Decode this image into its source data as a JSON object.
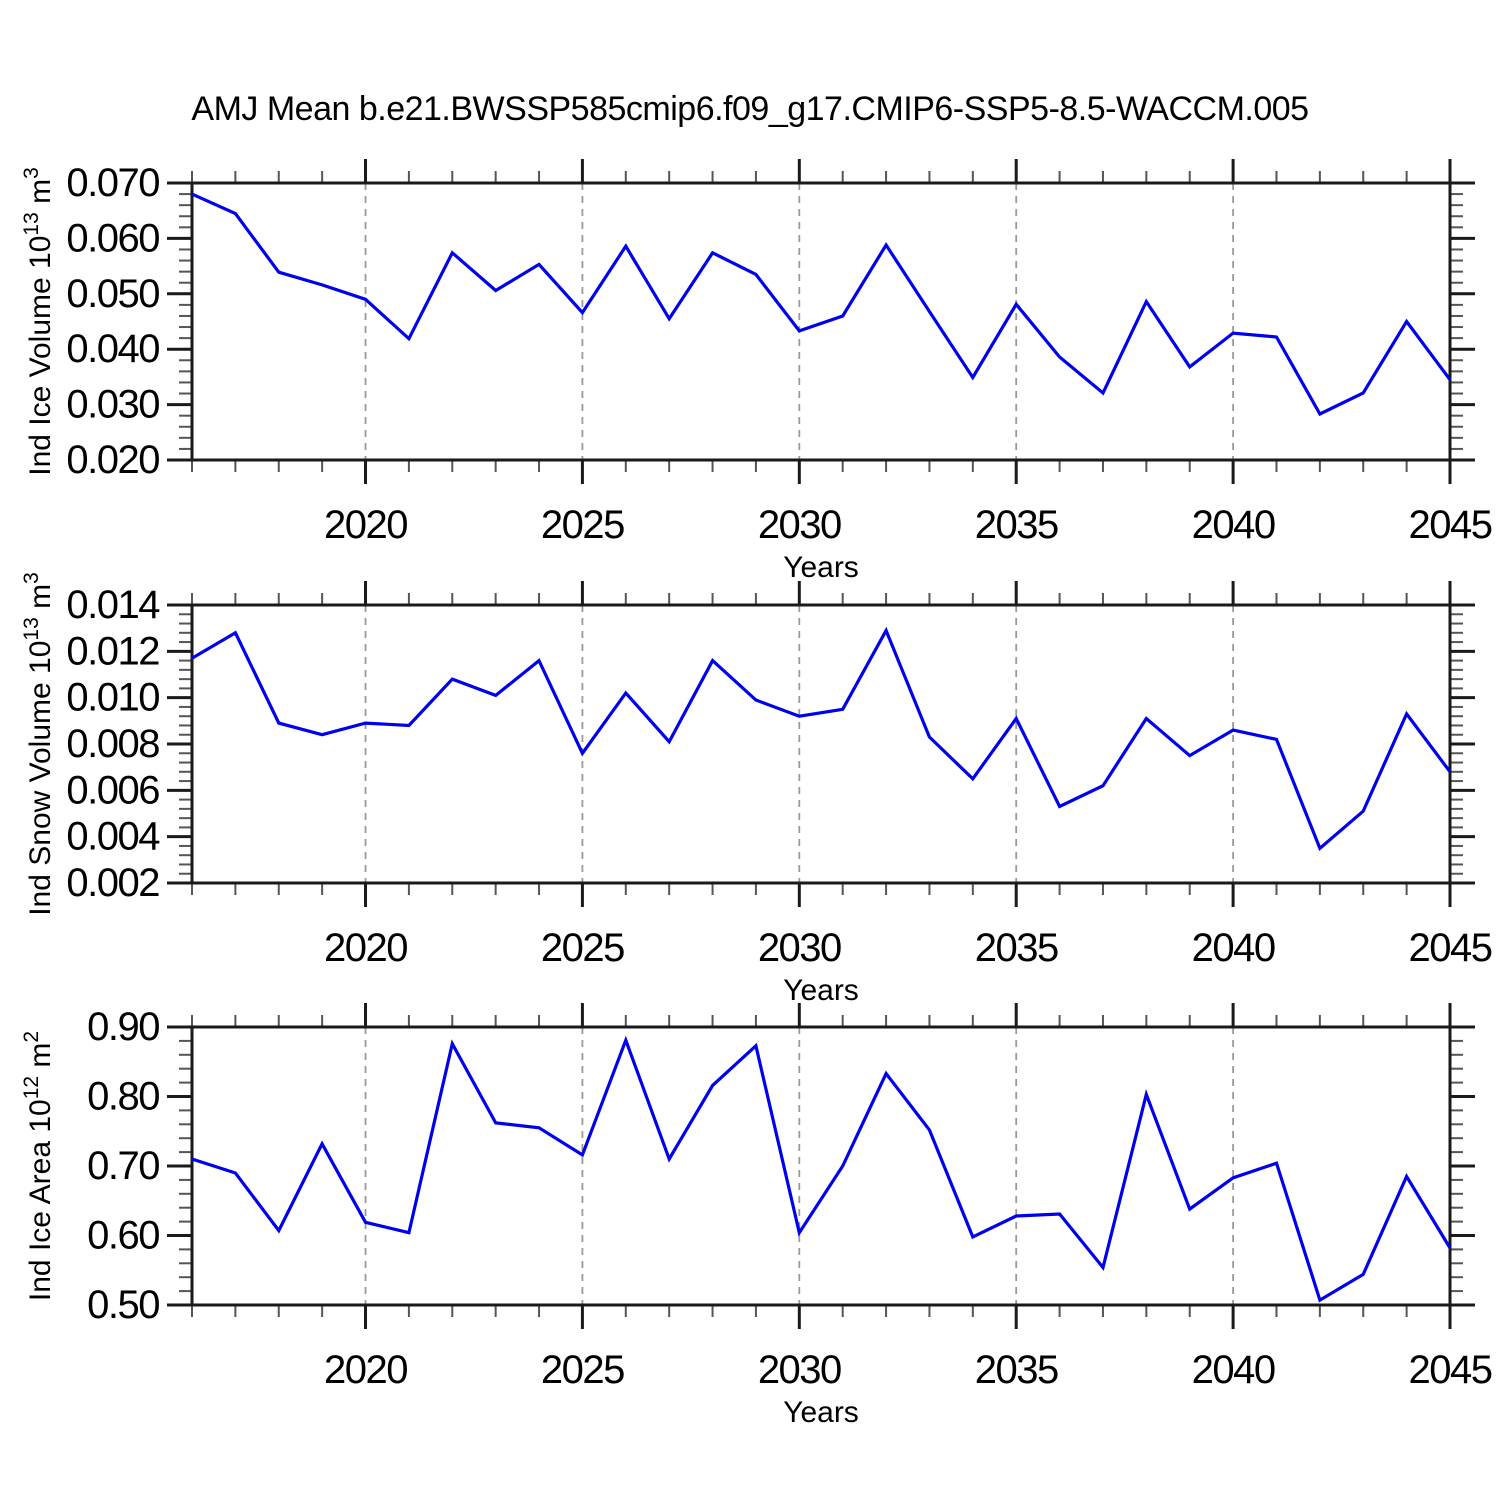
{
  "header": {
    "title": "AMJ Mean b.e21.BWSSP585cmip6.f09_g17.CMIP6-SSP5-8.5-WACCM.005"
  },
  "colors": {
    "line": "#0000ee",
    "grid": "#999999",
    "axis": "#1a1a1a",
    "minor_tick": "#555555",
    "background": "#ffffff",
    "text": "#000000"
  },
  "chart_data": [
    {
      "name": "ice-volume-panel",
      "type": "line",
      "ylabel": "Ind Ice Volume 10^13 m^3",
      "xlabel": "Years",
      "x": [
        2016,
        2017,
        2018,
        2019,
        2020,
        2021,
        2022,
        2023,
        2024,
        2025,
        2026,
        2027,
        2028,
        2029,
        2030,
        2031,
        2032,
        2033,
        2034,
        2035,
        2036,
        2037,
        2038,
        2039,
        2040,
        2041,
        2042,
        2043,
        2044,
        2045
      ],
      "y": [
        0.068,
        0.0645,
        0.0539,
        0.0516,
        0.049,
        0.0419,
        0.0574,
        0.0506,
        0.0553,
        0.0466,
        0.0586,
        0.0455,
        0.0574,
        0.0535,
        0.0433,
        0.046,
        0.0588,
        0.0468,
        0.0349,
        0.0481,
        0.0386,
        0.0321,
        0.0486,
        0.0368,
        0.0429,
        0.0422,
        0.0283,
        0.0321,
        0.045,
        0.0345
      ],
      "xlim": [
        2016,
        2045
      ],
      "ylim": [
        0.02,
        0.07
      ],
      "xticks": [
        2020,
        2025,
        2030,
        2035,
        2040,
        2045
      ],
      "xtick_labels": [
        "2020",
        "2025",
        "2030",
        "2035",
        "2040",
        "2045"
      ],
      "yticks": [
        0.02,
        0.03,
        0.04,
        0.05,
        0.06,
        0.07
      ],
      "ytick_labels": [
        "0.020",
        "0.030",
        "0.040",
        "0.050",
        "0.060",
        "0.070"
      ],
      "x_minor_step": 1,
      "y_minors_per_interval": 4,
      "grid": "vertical-dashed-at-interior-major-xticks",
      "legend": "none"
    },
    {
      "name": "snow-volume-panel",
      "type": "line",
      "ylabel": "Ind Snow Volume 10^13 m^3",
      "xlabel": "Years",
      "x": [
        2016,
        2017,
        2018,
        2019,
        2020,
        2021,
        2022,
        2023,
        2024,
        2025,
        2026,
        2027,
        2028,
        2029,
        2030,
        2031,
        2032,
        2033,
        2034,
        2035,
        2036,
        2037,
        2038,
        2039,
        2040,
        2041,
        2042,
        2043,
        2044,
        2045
      ],
      "y": [
        0.0117,
        0.0128,
        0.0089,
        0.0084,
        0.0089,
        0.0088,
        0.0108,
        0.0101,
        0.0116,
        0.0076,
        0.0102,
        0.0081,
        0.0116,
        0.0099,
        0.0092,
        0.0095,
        0.0129,
        0.0083,
        0.0065,
        0.0091,
        0.0053,
        0.0062,
        0.0091,
        0.0075,
        0.0086,
        0.0082,
        0.0035,
        0.0051,
        0.0093,
        0.0068
      ],
      "xlim": [
        2016,
        2045
      ],
      "ylim": [
        0.002,
        0.014
      ],
      "xticks": [
        2020,
        2025,
        2030,
        2035,
        2040,
        2045
      ],
      "xtick_labels": [
        "2020",
        "2025",
        "2030",
        "2035",
        "2040",
        "2045"
      ],
      "yticks": [
        0.002,
        0.004,
        0.006,
        0.008,
        0.01,
        0.012,
        0.014
      ],
      "ytick_labels": [
        "0.002",
        "0.004",
        "0.006",
        "0.008",
        "0.010",
        "0.012",
        "0.014"
      ],
      "x_minor_step": 1,
      "y_minors_per_interval": 4,
      "grid": "vertical-dashed-at-interior-major-xticks",
      "legend": "none"
    },
    {
      "name": "ice-area-panel",
      "type": "line",
      "ylabel": "Ind Ice Area 10^12 m^2",
      "xlabel": "Years",
      "x": [
        2016,
        2017,
        2018,
        2019,
        2020,
        2021,
        2022,
        2023,
        2024,
        2025,
        2026,
        2027,
        2028,
        2029,
        2030,
        2031,
        2032,
        2033,
        2034,
        2035,
        2036,
        2037,
        2038,
        2039,
        2040,
        2041,
        2042,
        2043,
        2044,
        2045
      ],
      "y": [
        0.71,
        0.69,
        0.607,
        0.732,
        0.619,
        0.604,
        0.876,
        0.762,
        0.755,
        0.716,
        0.881,
        0.71,
        0.816,
        0.873,
        0.604,
        0.7,
        0.833,
        0.752,
        0.598,
        0.628,
        0.631,
        0.554,
        0.803,
        0.638,
        0.683,
        0.704,
        0.507,
        0.544,
        0.685,
        0.582
      ],
      "xlim": [
        2016,
        2045
      ],
      "ylim": [
        0.5,
        0.9
      ],
      "xticks": [
        2020,
        2025,
        2030,
        2035,
        2040,
        2045
      ],
      "xtick_labels": [
        "2020",
        "2025",
        "2030",
        "2035",
        "2040",
        "2045"
      ],
      "yticks": [
        0.5,
        0.6,
        0.7,
        0.8,
        0.9
      ],
      "ytick_labels": [
        "0.50",
        "0.60",
        "0.70",
        "0.80",
        "0.90"
      ],
      "x_minor_step": 1,
      "y_minors_per_interval": 4,
      "grid": "vertical-dashed-at-interior-major-xticks",
      "legend": "none"
    }
  ]
}
